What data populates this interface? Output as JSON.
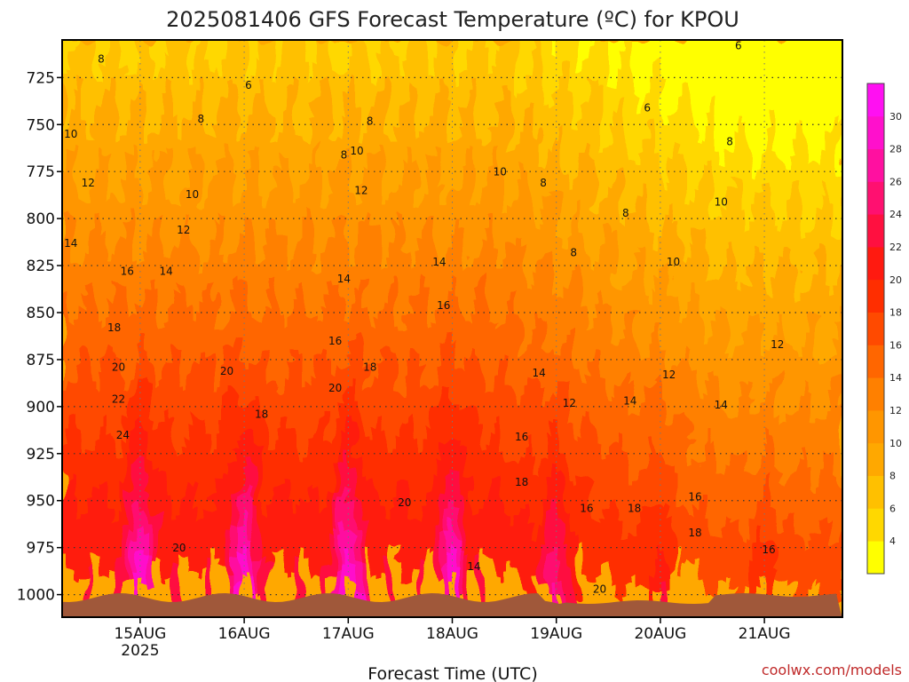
{
  "title": "2025081406 GFS Forecast Temperature (ºC) for KPOU",
  "credit": "coolwx.com/models",
  "chart_data": {
    "type": "heatmap",
    "title": "2025081406 GFS Forecast Temperature (ºC) for KPOU",
    "xlabel": "Forecast Time (UTC)",
    "ylabel": "",
    "x_ticks": [
      {
        "label": "15AUG",
        "sublabel": "2025",
        "hours_from_init": 18
      },
      {
        "label": "16AUG",
        "sublabel": "",
        "hours_from_init": 42
      },
      {
        "label": "17AUG",
        "sublabel": "",
        "hours_from_init": 66
      },
      {
        "label": "18AUG",
        "sublabel": "",
        "hours_from_init": 90
      },
      {
        "label": "19AUG",
        "sublabel": "",
        "hours_from_init": 114
      },
      {
        "label": "20AUG",
        "sublabel": "",
        "hours_from_init": 138
      },
      {
        "label": "21AUG",
        "sublabel": "",
        "hours_from_init": 162
      }
    ],
    "x_range_hours": [
      0,
      180
    ],
    "y_ticks": [
      725,
      750,
      775,
      800,
      825,
      850,
      875,
      900,
      925,
      950,
      975,
      1000
    ],
    "y_range_hPa": [
      705,
      1012
    ],
    "y_unit": "hPa",
    "colorbar": {
      "levels": [
        2,
        4,
        6,
        8,
        10,
        12,
        14,
        16,
        18,
        20,
        22,
        24,
        26,
        28,
        30,
        32
      ],
      "tick_labels": [
        "4",
        "6",
        "8",
        "10",
        "12",
        "14",
        "16",
        "18",
        "20",
        "22",
        "24",
        "26",
        "28",
        "30"
      ],
      "colors": [
        "#ffff00",
        "#ffd800",
        "#ffc000",
        "#ffa800",
        "#ff9600",
        "#ff8000",
        "#ff6600",
        "#ff4a00",
        "#ff2e00",
        "#ff1a10",
        "#ff1040",
        "#ff1070",
        "#ff10a0",
        "#ff10cc",
        "#ff10f2"
      ]
    },
    "contour_labels": [
      {
        "value": 8,
        "t": 9,
        "p": 717
      },
      {
        "value": 6,
        "t": 43,
        "p": 731
      },
      {
        "value": 6,
        "t": 156,
        "p": 710
      },
      {
        "value": 6,
        "t": 135,
        "p": 743
      },
      {
        "value": 8,
        "t": 32,
        "p": 749
      },
      {
        "value": 8,
        "t": 65,
        "p": 768
      },
      {
        "value": 8,
        "t": 71,
        "p": 750
      },
      {
        "value": 8,
        "t": 111,
        "p": 783
      },
      {
        "value": 8,
        "t": 130,
        "p": 799
      },
      {
        "value": 8,
        "t": 154,
        "p": 761
      },
      {
        "value": 8,
        "t": 118,
        "p": 820
      },
      {
        "value": 10,
        "t": 2,
        "p": 757
      },
      {
        "value": 10,
        "t": 30,
        "p": 789
      },
      {
        "value": 10,
        "t": 68,
        "p": 766
      },
      {
        "value": 10,
        "t": 101,
        "p": 777
      },
      {
        "value": 10,
        "t": 141,
        "p": 825
      },
      {
        "value": 10,
        "t": 152,
        "p": 793
      },
      {
        "value": 12,
        "t": 6,
        "p": 783
      },
      {
        "value": 12,
        "t": 28,
        "p": 808
      },
      {
        "value": 12,
        "t": 69,
        "p": 787
      },
      {
        "value": 12,
        "t": 117,
        "p": 900
      },
      {
        "value": 12,
        "t": 140,
        "p": 885
      },
      {
        "value": 12,
        "t": 165,
        "p": 869
      },
      {
        "value": 14,
        "t": 2,
        "p": 815
      },
      {
        "value": 14,
        "t": 24,
        "p": 830
      },
      {
        "value": 14,
        "t": 65,
        "p": 834
      },
      {
        "value": 14,
        "t": 87,
        "p": 825
      },
      {
        "value": 14,
        "t": 110,
        "p": 884
      },
      {
        "value": 14,
        "t": 131,
        "p": 899
      },
      {
        "value": 14,
        "t": 152,
        "p": 901
      },
      {
        "value": 14,
        "t": 95,
        "p": 987
      },
      {
        "value": 16,
        "t": 15,
        "p": 830
      },
      {
        "value": 16,
        "t": 63,
        "p": 867
      },
      {
        "value": 16,
        "t": 88,
        "p": 848
      },
      {
        "value": 16,
        "t": 106,
        "p": 918
      },
      {
        "value": 16,
        "t": 121,
        "p": 956
      },
      {
        "value": 16,
        "t": 146,
        "p": 950
      },
      {
        "value": 16,
        "t": 163,
        "p": 978
      },
      {
        "value": 18,
        "t": 12,
        "p": 860
      },
      {
        "value": 18,
        "t": 46,
        "p": 906
      },
      {
        "value": 18,
        "t": 71,
        "p": 881
      },
      {
        "value": 18,
        "t": 106,
        "p": 942
      },
      {
        "value": 18,
        "t": 132,
        "p": 956
      },
      {
        "value": 18,
        "t": 146,
        "p": 969
      },
      {
        "value": 20,
        "t": 13,
        "p": 881
      },
      {
        "value": 20,
        "t": 38,
        "p": 883
      },
      {
        "value": 20,
        "t": 63,
        "p": 892
      },
      {
        "value": 20,
        "t": 79,
        "p": 953
      },
      {
        "value": 20,
        "t": 27,
        "p": 977
      },
      {
        "value": 20,
        "t": 124,
        "p": 999
      },
      {
        "value": 22,
        "t": 13,
        "p": 898
      },
      {
        "value": 24,
        "t": 14,
        "p": 917
      }
    ]
  }
}
